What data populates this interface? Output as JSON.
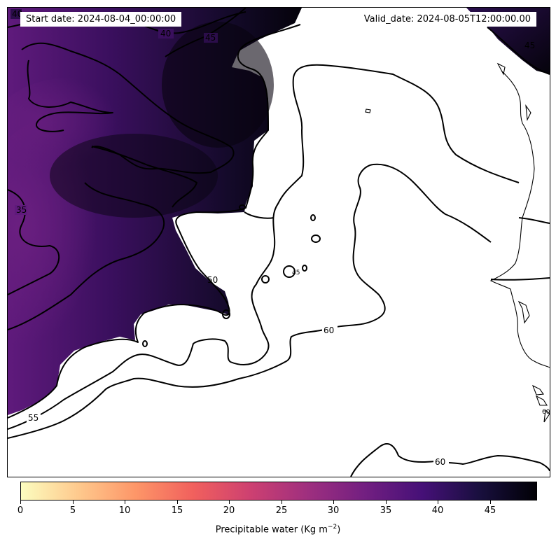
{
  "header": {
    "start_date": "Start date: 2024-08-04_00:00:00",
    "valid_date": "Valid_date: 2024-08-05T12:00:00.00"
  },
  "map": {
    "field": "Precipitable water",
    "contour_levels": [
      35,
      40,
      45,
      50,
      55,
      60
    ],
    "contour_labels": [
      {
        "text": "40"
      },
      {
        "text": "45"
      },
      {
        "text": "45"
      },
      {
        "text": "40"
      },
      {
        "text": "35"
      },
      {
        "text": "50"
      },
      {
        "text": "55"
      },
      {
        "text": "60"
      },
      {
        "text": "60"
      },
      {
        "text": "45"
      },
      {
        "text": "60"
      }
    ]
  },
  "colorbar": {
    "min": 0,
    "max": 49.5,
    "colormap": "magma_r",
    "colors": [
      "#fcfdbf",
      "#fec98d",
      "#fd9668",
      "#f1605d",
      "#cd4071",
      "#9e2f7f",
      "#721f81",
      "#451077",
      "#180f3d",
      "#000004"
    ],
    "ticks": [
      "0",
      "5",
      "10",
      "15",
      "20",
      "25",
      "30",
      "35",
      "40",
      "45"
    ],
    "label": "Precipitable water (Kg m",
    "label_exp": "−2",
    "label_close": ")"
  }
}
